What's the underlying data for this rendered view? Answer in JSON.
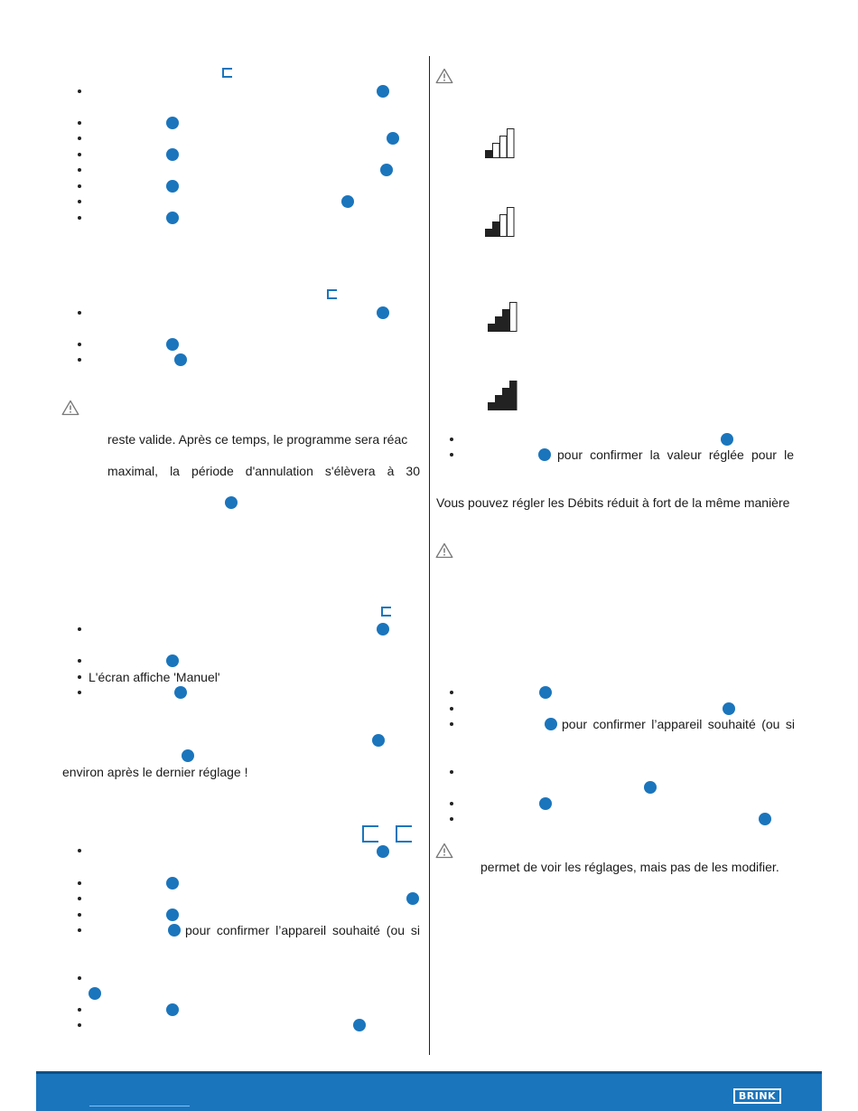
{
  "left_column": {
    "para_1": "reste valide. Après ce temps, le programme sera réac",
    "para_2": "maximal, la période d'annulation s'élèvera à 30",
    "screen_manual": "L'écran affiche 'Manuel'",
    "after_setting": "environ après le dernier réglage !",
    "confirm_device": "pour confirmer l’appareil souhaité (ou si"
  },
  "right_column": {
    "confirm_value": "pour confirmer la valeur réglée pour le",
    "debits_note": "Vous pouvez régler les Débits réduit à fort de la même manière",
    "confirm_device": "pour confirmer l’appareil souhaité (ou si",
    "view_settings": "permet de voir les réglages, mais pas de les modifier."
  },
  "footer": {
    "logo": "BRINK"
  },
  "colors": {
    "accent": "#1b75bc",
    "footer": "#1b75bc"
  },
  "icons": {
    "step": "blue-dot-icon",
    "warning": "warning-triangle-icon",
    "button": "bracket-button-icon",
    "level": "level-bars-icon"
  },
  "fan_levels": [
    1,
    2,
    3,
    4
  ]
}
